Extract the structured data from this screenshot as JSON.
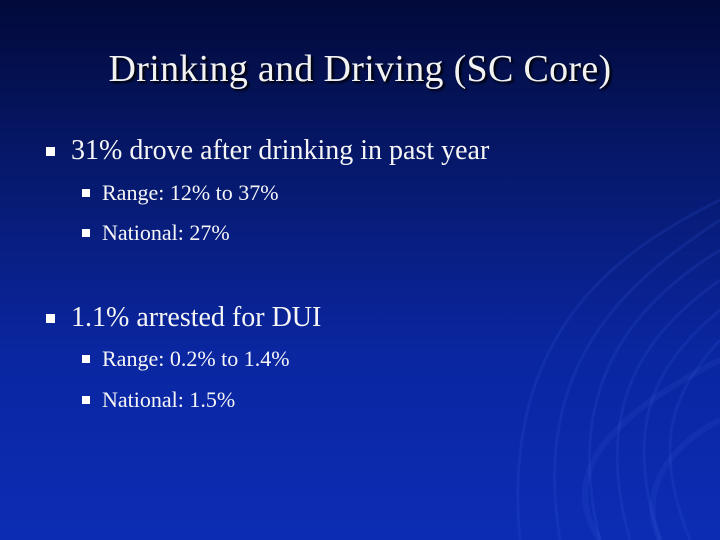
{
  "slide": {
    "title": "Drinking and Driving (SC Core)",
    "bullets": [
      {
        "text": "31% drove after drinking in past year",
        "sub": [
          {
            "text": "Range:  12% to 37%"
          },
          {
            "text": "National:  27%"
          }
        ]
      },
      {
        "text": "1.1% arrested for DUI",
        "sub": [
          {
            "text": "Range:  0.2% to 1.4%"
          },
          {
            "text": "National: 1.5%"
          }
        ]
      }
    ]
  },
  "colors": {
    "background_top": "#020a3a",
    "background_bottom": "#0c2cb4",
    "text": "#ffffff"
  }
}
